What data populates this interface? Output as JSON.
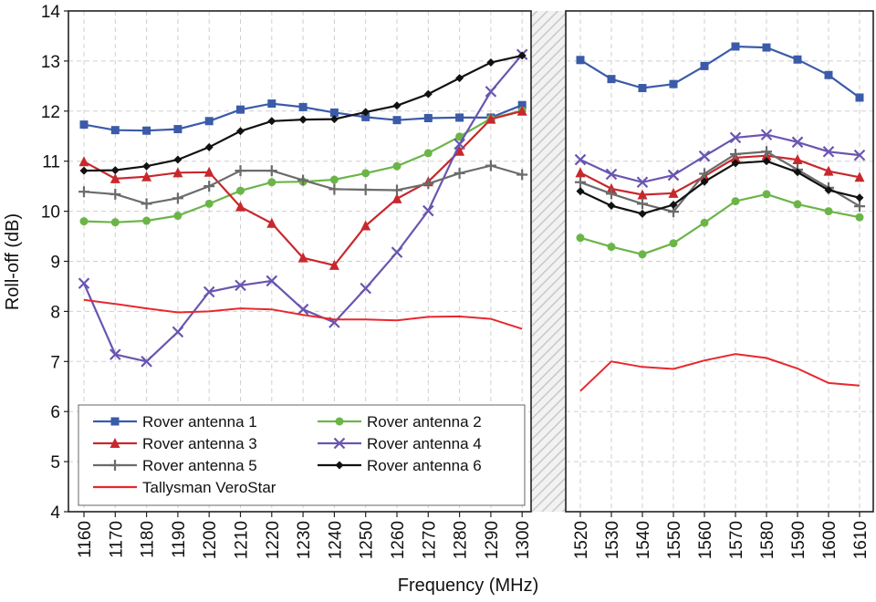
{
  "chart_data": {
    "type": "line",
    "title": "",
    "xlabel": "Frequency (MHz)",
    "ylabel": "Roll-off (dB)",
    "ylim": [
      4,
      14
    ],
    "yticks": [
      "4",
      "5",
      "6",
      "7",
      "8",
      "9",
      "10",
      "11",
      "12",
      "13",
      "14"
    ],
    "x_left": [
      "1160",
      "1170",
      "1180",
      "1190",
      "1200",
      "1210",
      "1220",
      "1230",
      "1240",
      "1250",
      "1260",
      "1270",
      "1280",
      "1290",
      "1300"
    ],
    "x_right": [
      "1520",
      "1530",
      "1540",
      "1550",
      "1560",
      "1570",
      "1580",
      "1590",
      "1600",
      "1610"
    ],
    "grid": true,
    "axis_break": "between 1300 and 1520 MHz",
    "legend_position": "bottom-left",
    "series": [
      {
        "name": "Rover antenna 1",
        "color": "#3b5ba9",
        "marker": "square",
        "left": [
          11.73,
          11.62,
          11.61,
          11.64,
          11.8,
          12.03,
          12.15,
          12.08,
          11.97,
          11.88,
          11.82,
          11.86,
          11.87,
          11.87,
          12.12
        ],
        "right": [
          13.02,
          12.64,
          12.46,
          12.54,
          12.9,
          13.29,
          13.27,
          13.03,
          12.72,
          12.27
        ]
      },
      {
        "name": "Rover antenna 2",
        "color": "#6bb548",
        "marker": "circle",
        "left": [
          9.8,
          9.78,
          9.81,
          9.91,
          10.15,
          10.41,
          10.58,
          10.59,
          10.63,
          10.76,
          10.9,
          11.16,
          11.49,
          11.85,
          12.01
        ],
        "right": [
          9.47,
          9.29,
          9.14,
          9.36,
          9.77,
          10.2,
          10.34,
          10.14,
          10.0,
          9.88
        ]
      },
      {
        "name": "Rover antenna 3",
        "color": "#c8282d",
        "marker": "triangle",
        "left": [
          10.99,
          10.65,
          10.69,
          10.77,
          10.78,
          10.09,
          9.76,
          9.07,
          8.92,
          9.71,
          10.25,
          10.59,
          11.2,
          11.84,
          12.0
        ],
        "right": [
          10.77,
          10.45,
          10.33,
          10.36,
          10.7,
          11.07,
          11.11,
          11.03,
          10.8,
          10.68
        ]
      },
      {
        "name": "Rover antenna 4",
        "color": "#6a55b0",
        "marker": "x",
        "left": [
          8.56,
          7.14,
          7.0,
          7.59,
          8.39,
          8.52,
          8.61,
          8.04,
          7.78,
          8.46,
          9.18,
          10.01,
          11.34,
          12.39,
          13.13
        ],
        "right": [
          11.03,
          10.74,
          10.58,
          10.72,
          11.1,
          11.47,
          11.53,
          11.38,
          11.19,
          11.12
        ]
      },
      {
        "name": "Rover antenna 5",
        "color": "#6b6b6b",
        "marker": "plus",
        "left": [
          10.39,
          10.34,
          10.15,
          10.26,
          10.5,
          10.81,
          10.81,
          10.62,
          10.44,
          10.43,
          10.42,
          10.55,
          10.76,
          10.91,
          10.73
        ],
        "right": [
          10.58,
          10.35,
          10.15,
          9.99,
          10.75,
          11.14,
          11.19,
          10.83,
          10.47,
          10.1
        ]
      },
      {
        "name": "Rover antenna 6",
        "color": "#111111",
        "marker": "diamond",
        "left": [
          10.81,
          10.82,
          10.9,
          11.03,
          11.28,
          11.6,
          11.8,
          11.83,
          11.84,
          11.98,
          12.11,
          12.34,
          12.66,
          12.97,
          13.11
        ],
        "right": [
          10.4,
          10.11,
          9.95,
          10.13,
          10.59,
          10.96,
          11.0,
          10.78,
          10.42,
          10.27
        ]
      },
      {
        "name": "Tallysman VeroStar",
        "color": "#e8282d",
        "marker": "none",
        "left": [
          8.23,
          8.15,
          8.06,
          7.98,
          8.0,
          8.06,
          8.04,
          7.93,
          7.84,
          7.84,
          7.82,
          7.89,
          7.9,
          7.85,
          7.65
        ],
        "right": [
          6.41,
          7.0,
          6.89,
          6.85,
          7.02,
          7.15,
          7.07,
          6.86,
          6.57,
          6.52
        ]
      }
    ]
  }
}
